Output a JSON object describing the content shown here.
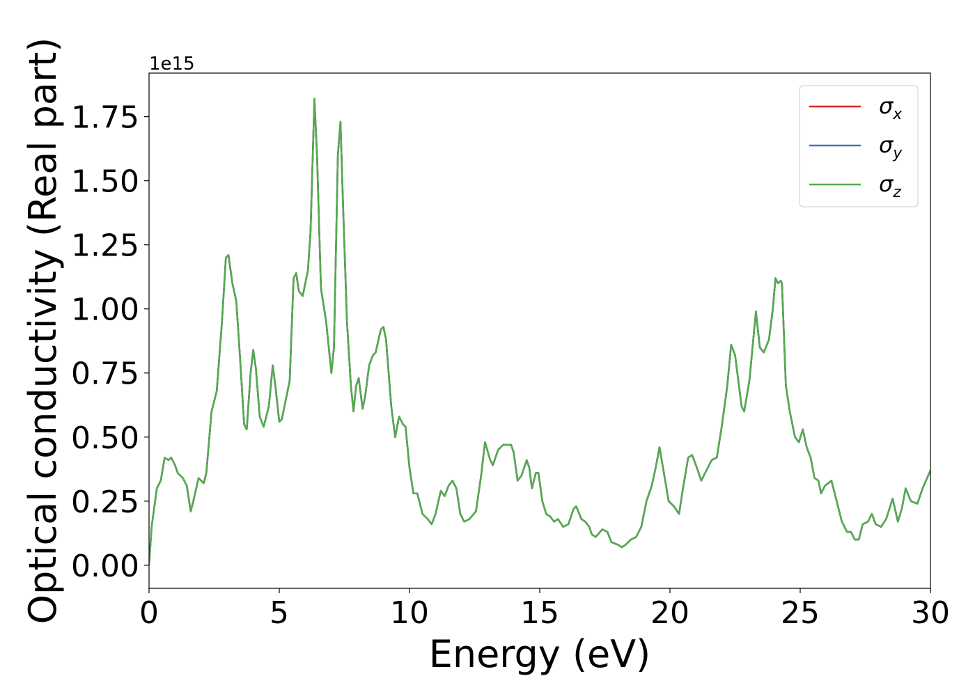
{
  "chart_data": {
    "type": "line",
    "xlabel": "Energy (eV)",
    "ylabel": "Optical conductivity (Real part)",
    "offset_text": "1e15",
    "x": [
      0,
      0.1,
      0.3,
      0.45,
      0.6,
      0.75,
      0.85,
      1.0,
      1.1,
      1.3,
      1.45,
      1.6,
      1.7,
      1.9,
      2.1,
      2.2,
      2.4,
      2.6,
      2.8,
      2.95,
      3.05,
      3.2,
      3.35,
      3.5,
      3.65,
      3.75,
      3.9,
      4.0,
      4.1,
      4.25,
      4.4,
      4.6,
      4.75,
      4.85,
      5.0,
      5.1,
      5.3,
      5.4,
      5.55,
      5.65,
      5.75,
      5.9,
      6.1,
      6.2,
      6.35,
      6.45,
      6.6,
      6.8,
      7.0,
      7.1,
      7.25,
      7.35,
      7.45,
      7.6,
      7.75,
      7.85,
      7.95,
      8.05,
      8.2,
      8.3,
      8.45,
      8.6,
      8.7,
      8.9,
      9.0,
      9.1,
      9.3,
      9.45,
      9.6,
      9.75,
      9.85,
      10.0,
      10.15,
      10.3,
      10.5,
      10.7,
      10.85,
      11.0,
      11.2,
      11.35,
      11.5,
      11.65,
      11.8,
      11.95,
      12.1,
      12.3,
      12.55,
      12.75,
      12.9,
      13.1,
      13.2,
      13.4,
      13.6,
      13.9,
      14.0,
      14.15,
      14.3,
      14.5,
      14.6,
      14.7,
      14.85,
      14.95,
      15.1,
      15.25,
      15.4,
      15.55,
      15.7,
      15.9,
      16.1,
      16.3,
      16.4,
      16.6,
      16.75,
      16.9,
      17.0,
      17.15,
      17.4,
      17.6,
      17.75,
      18.0,
      18.15,
      18.3,
      18.5,
      18.7,
      18.9,
      19.1,
      19.3,
      19.45,
      19.6,
      19.8,
      19.95,
      20.15,
      20.35,
      20.5,
      20.7,
      20.85,
      21.0,
      21.2,
      21.4,
      21.6,
      21.8,
      22.0,
      22.2,
      22.35,
      22.5,
      22.75,
      22.85,
      23.05,
      23.3,
      23.45,
      23.6,
      23.8,
      23.95,
      24.05,
      24.15,
      24.25,
      24.3,
      24.45,
      24.6,
      24.8,
      24.95,
      25.1,
      25.25,
      25.4,
      25.55,
      25.7,
      25.8,
      25.95,
      26.2,
      26.4,
      26.6,
      26.8,
      26.95,
      27.1,
      27.25,
      27.4,
      27.6,
      27.75,
      27.9,
      28.1,
      28.3,
      28.55,
      28.75,
      28.9,
      29.05,
      29.25,
      29.5,
      29.7,
      30
    ],
    "series": [
      {
        "name": "σx",
        "color": "#d62728",
        "values": [
          0,
          0.15,
          0.3,
          0.33,
          0.42,
          0.41,
          0.42,
          0.39,
          0.36,
          0.34,
          0.31,
          0.21,
          0.25,
          0.34,
          0.32,
          0.36,
          0.6,
          0.68,
          0.95,
          1.2,
          1.21,
          1.1,
          1.03,
          0.8,
          0.55,
          0.53,
          0.75,
          0.84,
          0.77,
          0.58,
          0.54,
          0.62,
          0.78,
          0.7,
          0.56,
          0.57,
          0.67,
          0.72,
          1.12,
          1.14,
          1.07,
          1.05,
          1.15,
          1.3,
          1.82,
          1.6,
          1.08,
          0.95,
          0.75,
          0.85,
          1.6,
          1.73,
          1.4,
          0.95,
          0.7,
          0.6,
          0.7,
          0.73,
          0.61,
          0.66,
          0.78,
          0.82,
          0.83,
          0.92,
          0.93,
          0.88,
          0.62,
          0.5,
          0.58,
          0.55,
          0.54,
          0.38,
          0.28,
          0.28,
          0.2,
          0.18,
          0.16,
          0.2,
          0.29,
          0.27,
          0.31,
          0.33,
          0.3,
          0.2,
          0.17,
          0.18,
          0.21,
          0.35,
          0.48,
          0.41,
          0.39,
          0.45,
          0.47,
          0.47,
          0.44,
          0.33,
          0.35,
          0.41,
          0.38,
          0.3,
          0.36,
          0.36,
          0.25,
          0.2,
          0.19,
          0.17,
          0.18,
          0.15,
          0.16,
          0.22,
          0.23,
          0.18,
          0.17,
          0.15,
          0.12,
          0.11,
          0.14,
          0.13,
          0.09,
          0.08,
          0.07,
          0.08,
          0.1,
          0.11,
          0.15,
          0.25,
          0.31,
          0.38,
          0.46,
          0.34,
          0.25,
          0.23,
          0.2,
          0.3,
          0.42,
          0.43,
          0.39,
          0.33,
          0.37,
          0.41,
          0.42,
          0.55,
          0.7,
          0.86,
          0.82,
          0.62,
          0.6,
          0.72,
          0.99,
          0.85,
          0.83,
          0.88,
          1.0,
          1.12,
          1.1,
          1.11,
          1.1,
          0.7,
          0.6,
          0.5,
          0.48,
          0.53,
          0.46,
          0.42,
          0.34,
          0.33,
          0.28,
          0.31,
          0.33,
          0.25,
          0.17,
          0.13,
          0.13,
          0.1,
          0.1,
          0.16,
          0.17,
          0.2,
          0.16,
          0.15,
          0.18,
          0.26,
          0.17,
          0.22,
          0.3,
          0.25,
          0.24,
          0.3,
          0.37
        ]
      },
      {
        "name": "σy",
        "color": "#3a78b0",
        "values": [
          0,
          0.15,
          0.3,
          0.33,
          0.42,
          0.41,
          0.42,
          0.39,
          0.36,
          0.34,
          0.31,
          0.21,
          0.25,
          0.34,
          0.32,
          0.36,
          0.6,
          0.68,
          0.95,
          1.2,
          1.21,
          1.1,
          1.03,
          0.8,
          0.55,
          0.53,
          0.75,
          0.84,
          0.77,
          0.58,
          0.54,
          0.62,
          0.78,
          0.7,
          0.56,
          0.57,
          0.67,
          0.72,
          1.12,
          1.14,
          1.07,
          1.05,
          1.15,
          1.3,
          1.82,
          1.6,
          1.08,
          0.95,
          0.75,
          0.85,
          1.6,
          1.73,
          1.4,
          0.95,
          0.7,
          0.6,
          0.7,
          0.73,
          0.61,
          0.66,
          0.78,
          0.82,
          0.83,
          0.92,
          0.93,
          0.88,
          0.62,
          0.5,
          0.58,
          0.55,
          0.54,
          0.38,
          0.28,
          0.28,
          0.2,
          0.18,
          0.16,
          0.2,
          0.29,
          0.27,
          0.31,
          0.33,
          0.3,
          0.2,
          0.17,
          0.18,
          0.21,
          0.35,
          0.48,
          0.41,
          0.39,
          0.45,
          0.47,
          0.47,
          0.44,
          0.33,
          0.35,
          0.41,
          0.38,
          0.3,
          0.36,
          0.36,
          0.25,
          0.2,
          0.19,
          0.17,
          0.18,
          0.15,
          0.16,
          0.22,
          0.23,
          0.18,
          0.17,
          0.15,
          0.12,
          0.11,
          0.14,
          0.13,
          0.09,
          0.08,
          0.07,
          0.08,
          0.1,
          0.11,
          0.15,
          0.25,
          0.31,
          0.38,
          0.46,
          0.34,
          0.25,
          0.23,
          0.2,
          0.3,
          0.42,
          0.43,
          0.39,
          0.33,
          0.37,
          0.41,
          0.42,
          0.55,
          0.7,
          0.86,
          0.82,
          0.62,
          0.6,
          0.72,
          0.99,
          0.85,
          0.83,
          0.88,
          1.0,
          1.12,
          1.1,
          1.11,
          1.1,
          0.7,
          0.6,
          0.5,
          0.48,
          0.53,
          0.46,
          0.42,
          0.34,
          0.33,
          0.28,
          0.31,
          0.33,
          0.25,
          0.17,
          0.13,
          0.13,
          0.1,
          0.1,
          0.16,
          0.17,
          0.2,
          0.16,
          0.15,
          0.18,
          0.26,
          0.17,
          0.22,
          0.3,
          0.25,
          0.24,
          0.3,
          0.37
        ]
      },
      {
        "name": "σz",
        "color": "#55aa4f",
        "values": [
          0,
          0.15,
          0.3,
          0.33,
          0.42,
          0.41,
          0.42,
          0.39,
          0.36,
          0.34,
          0.31,
          0.21,
          0.25,
          0.34,
          0.32,
          0.36,
          0.6,
          0.68,
          0.95,
          1.2,
          1.21,
          1.1,
          1.03,
          0.8,
          0.55,
          0.53,
          0.75,
          0.84,
          0.77,
          0.58,
          0.54,
          0.62,
          0.78,
          0.7,
          0.56,
          0.57,
          0.67,
          0.72,
          1.12,
          1.14,
          1.07,
          1.05,
          1.15,
          1.3,
          1.82,
          1.6,
          1.08,
          0.95,
          0.75,
          0.85,
          1.6,
          1.73,
          1.4,
          0.95,
          0.7,
          0.6,
          0.7,
          0.73,
          0.61,
          0.66,
          0.78,
          0.82,
          0.83,
          0.92,
          0.93,
          0.88,
          0.62,
          0.5,
          0.58,
          0.55,
          0.54,
          0.38,
          0.28,
          0.28,
          0.2,
          0.18,
          0.16,
          0.2,
          0.29,
          0.27,
          0.31,
          0.33,
          0.3,
          0.2,
          0.17,
          0.18,
          0.21,
          0.35,
          0.48,
          0.41,
          0.39,
          0.45,
          0.47,
          0.47,
          0.44,
          0.33,
          0.35,
          0.41,
          0.38,
          0.3,
          0.36,
          0.36,
          0.25,
          0.2,
          0.19,
          0.17,
          0.18,
          0.15,
          0.16,
          0.22,
          0.23,
          0.18,
          0.17,
          0.15,
          0.12,
          0.11,
          0.14,
          0.13,
          0.09,
          0.08,
          0.07,
          0.08,
          0.1,
          0.11,
          0.15,
          0.25,
          0.31,
          0.38,
          0.46,
          0.34,
          0.25,
          0.23,
          0.2,
          0.3,
          0.42,
          0.43,
          0.39,
          0.33,
          0.37,
          0.41,
          0.42,
          0.55,
          0.7,
          0.86,
          0.82,
          0.62,
          0.6,
          0.72,
          0.99,
          0.85,
          0.83,
          0.88,
          1.0,
          1.12,
          1.1,
          1.11,
          1.1,
          0.7,
          0.6,
          0.5,
          0.48,
          0.53,
          0.46,
          0.42,
          0.34,
          0.33,
          0.28,
          0.31,
          0.33,
          0.25,
          0.17,
          0.13,
          0.13,
          0.1,
          0.1,
          0.16,
          0.17,
          0.2,
          0.16,
          0.15,
          0.18,
          0.26,
          0.17,
          0.22,
          0.3,
          0.25,
          0.24,
          0.3,
          0.37
        ]
      }
    ],
    "xlim": [
      0,
      30
    ],
    "xticks": [
      0,
      5,
      10,
      15,
      20,
      25,
      30
    ],
    "ylim": [
      -0.09,
      1.92
    ],
    "yticks": [
      {
        "value": 0,
        "label": "0.00"
      },
      {
        "value": 0.25,
        "label": "0.25"
      },
      {
        "value": 0.5,
        "label": "0.50"
      },
      {
        "value": 0.75,
        "label": "0.75"
      },
      {
        "value": 1,
        "label": "1.00"
      },
      {
        "value": 1.25,
        "label": "1.25"
      },
      {
        "value": 1.5,
        "label": "1.50"
      },
      {
        "value": 1.75,
        "label": "1.75"
      }
    ],
    "legend": "upper right",
    "grid": false
  }
}
